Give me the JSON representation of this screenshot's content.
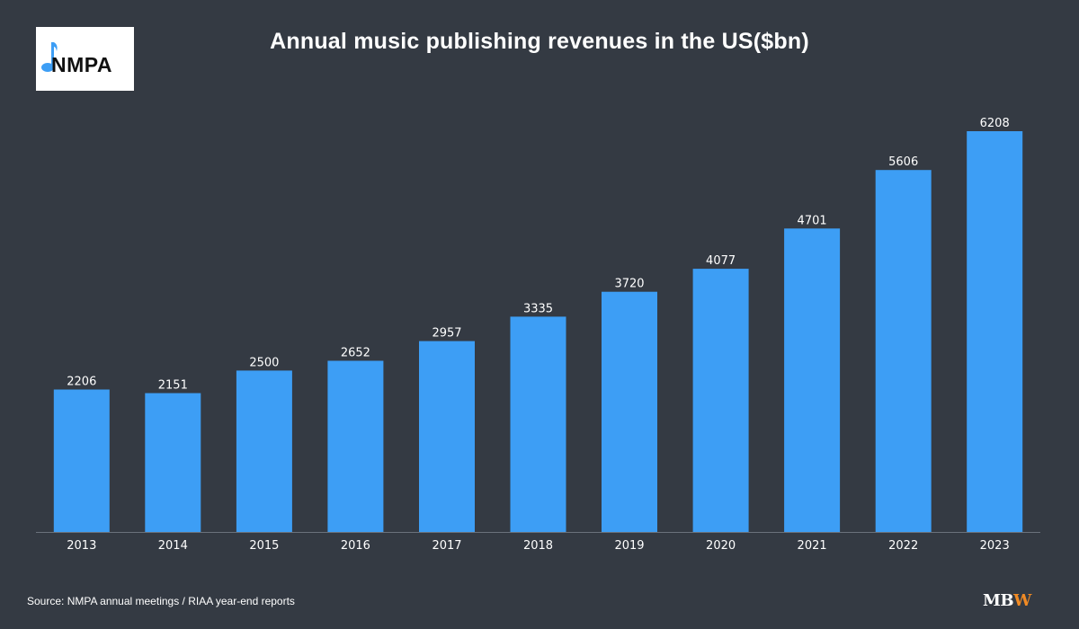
{
  "logo": {
    "text": "NMPA",
    "icon": "music-note-icon",
    "note_color": "#3d9ef5"
  },
  "chart_data": {
    "type": "bar",
    "title": "Annual music publishing revenues in the US($bn)",
    "categories": [
      "2013",
      "2014",
      "2015",
      "2016",
      "2017",
      "2018",
      "2019",
      "2020",
      "2021",
      "2022",
      "2023"
    ],
    "values": [
      2206,
      2151,
      2500,
      2652,
      2957,
      3335,
      3720,
      4077,
      4701,
      5606,
      6208
    ],
    "xlabel": "",
    "ylabel": "",
    "ylim": [
      0,
      6208
    ],
    "grid": false,
    "legend": "none",
    "bar_color": "#3d9ef5",
    "axis_color": "#6b727c"
  },
  "footer": {
    "source": "Source: NMPA annual meetings / RIAA year-end reports",
    "brand_mb": "MB",
    "brand_w": "W"
  }
}
